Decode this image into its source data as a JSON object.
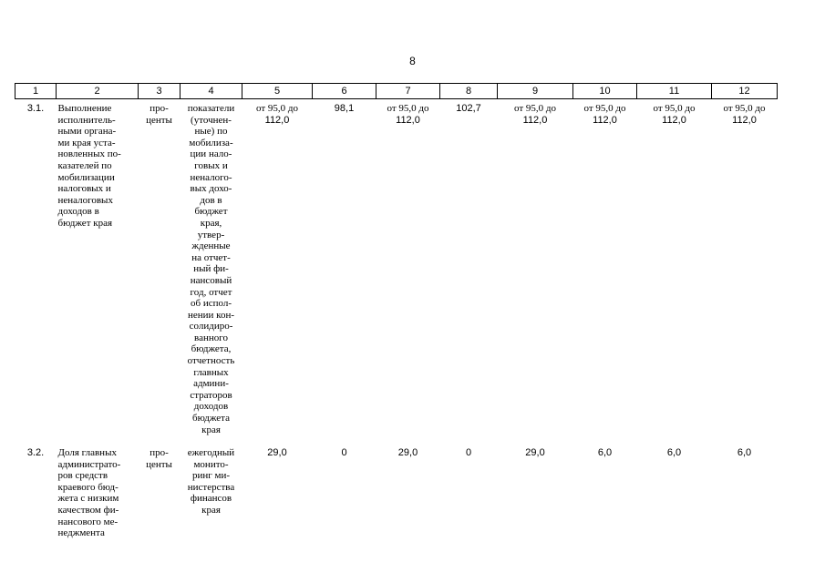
{
  "page_number": "8",
  "header": [
    "1",
    "2",
    "3",
    "4",
    "5",
    "6",
    "7",
    "8",
    "9",
    "10",
    "11",
    "12"
  ],
  "rows": [
    {
      "num": "3.1.",
      "name": "Выполнение\nисполнитель-\nными органа-\nми края уста-\nновленных по-\nказателей по\nмобилизации\nналоговых и\nненалоговых\nдоходов в\nбюджет края",
      "unit": "про-\nценты",
      "source": "показатели\n(уточнен-\nные) по\nмобилиза-\nции нало-\nговых и\nненалого-\nвых дохо-\nдов в\nбюджет\nкрая,\nутвер-\nжденные\nна отчет-\nный фи-\nнансовый\nгод, отчет\nоб испол-\nнении кон-\nсолидиро-\nванного\nбюджета,\nотчетность\nглавных\nадмини-\nстраторов\nдоходов\nбюджета\nкрая",
      "c5": {
        "prefix": "от 95,0 до",
        "value": "112,0"
      },
      "c6": "98,1",
      "c7": {
        "prefix": "от 95,0 до",
        "value": "112,0"
      },
      "c8": "102,7",
      "c9": {
        "prefix": "от 95,0 до",
        "value": "112,0"
      },
      "c10": {
        "prefix": "от 95,0 до",
        "value": "112,0"
      },
      "c11": {
        "prefix": "от 95,0 до",
        "value": "112,0"
      },
      "c12": {
        "prefix": "от 95,0 до",
        "value": "112,0"
      }
    },
    {
      "num": "3.2.",
      "name": "Доля главных\nадминистрато-\nров средств\nкраевого бюд-\nжета с низким\nкачеством фи-\nнансового ме-\nнеджмента",
      "unit": "про-\nценты",
      "source": "ежегодный\nмонито-\nринг ми-\nнистерства\nфинансов\nкрая",
      "c5": "29,0",
      "c6": "0",
      "c7": "29,0",
      "c8": "0",
      "c9": "29,0",
      "c10": "6,0",
      "c11": "6,0",
      "c12": "6,0"
    }
  ]
}
